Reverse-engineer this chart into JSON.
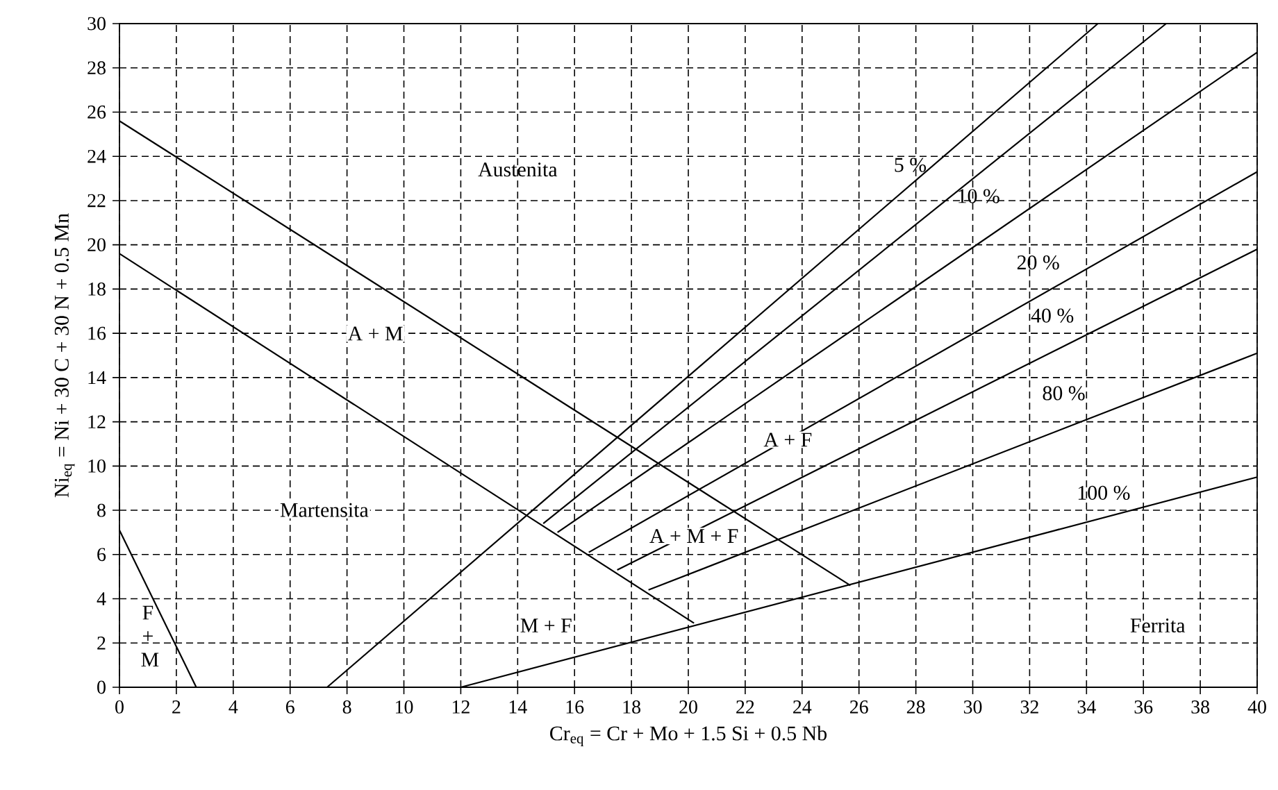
{
  "chart_data": {
    "type": "line",
    "xlabel": "Cr$_{eq}$ = Cr + Mo + 1.5 Si + 0.5 Nb",
    "ylabel": "Ni$_{eq}$ = Ni + 30 C + 30 N + 0.5 Mn",
    "xlim": [
      0,
      40
    ],
    "ylim": [
      0,
      30
    ],
    "xticks": [
      0,
      2,
      4,
      6,
      8,
      10,
      12,
      14,
      16,
      18,
      20,
      22,
      24,
      26,
      28,
      30,
      32,
      34,
      36,
      38,
      40
    ],
    "yticks": [
      0,
      2,
      4,
      6,
      8,
      10,
      12,
      14,
      16,
      18,
      20,
      22,
      24,
      26,
      28,
      30
    ],
    "grid": true,
    "marker": "none",
    "line_style": "solid",
    "series": [
      {
        "color": "#000000",
        "x": [
          0,
          25.7
        ],
        "values": [
          25.6,
          4.6
        ]
      },
      {
        "color": "#000000",
        "x": [
          0,
          20.2
        ],
        "values": [
          19.6,
          2.9
        ]
      },
      {
        "color": "#000000",
        "x": [
          0,
          2.7
        ],
        "values": [
          7.1,
          0
        ]
      },
      {
        "color": "#000000",
        "x": [
          7.3,
          34.4
        ],
        "values": [
          0,
          30
        ]
      },
      {
        "color": "#000000",
        "x": [
          14.9,
          36.8
        ],
        "values": [
          7.4,
          30
        ]
      },
      {
        "color": "#000000",
        "x": [
          15.4,
          40
        ],
        "values": [
          7.0,
          28.7
        ]
      },
      {
        "color": "#000000",
        "x": [
          16.5,
          40
        ],
        "values": [
          6.1,
          23.3
        ]
      },
      {
        "color": "#000000",
        "x": [
          17.5,
          40
        ],
        "values": [
          5.3,
          19.8
        ]
      },
      {
        "color": "#000000",
        "x": [
          18.6,
          40
        ],
        "values": [
          4.4,
          15.1
        ]
      },
      {
        "color": "#000000",
        "x": [
          12,
          40
        ],
        "values": [
          0,
          9.5
        ]
      }
    ],
    "annotations": [
      "Austenita",
      "A + M",
      "Martensita",
      "F + M",
      "M + F",
      "A + M + F",
      "A + F",
      "Ferrita",
      "5 %",
      "10 %",
      "20 %",
      "40 %",
      "80 %",
      "100 %"
    ]
  }
}
